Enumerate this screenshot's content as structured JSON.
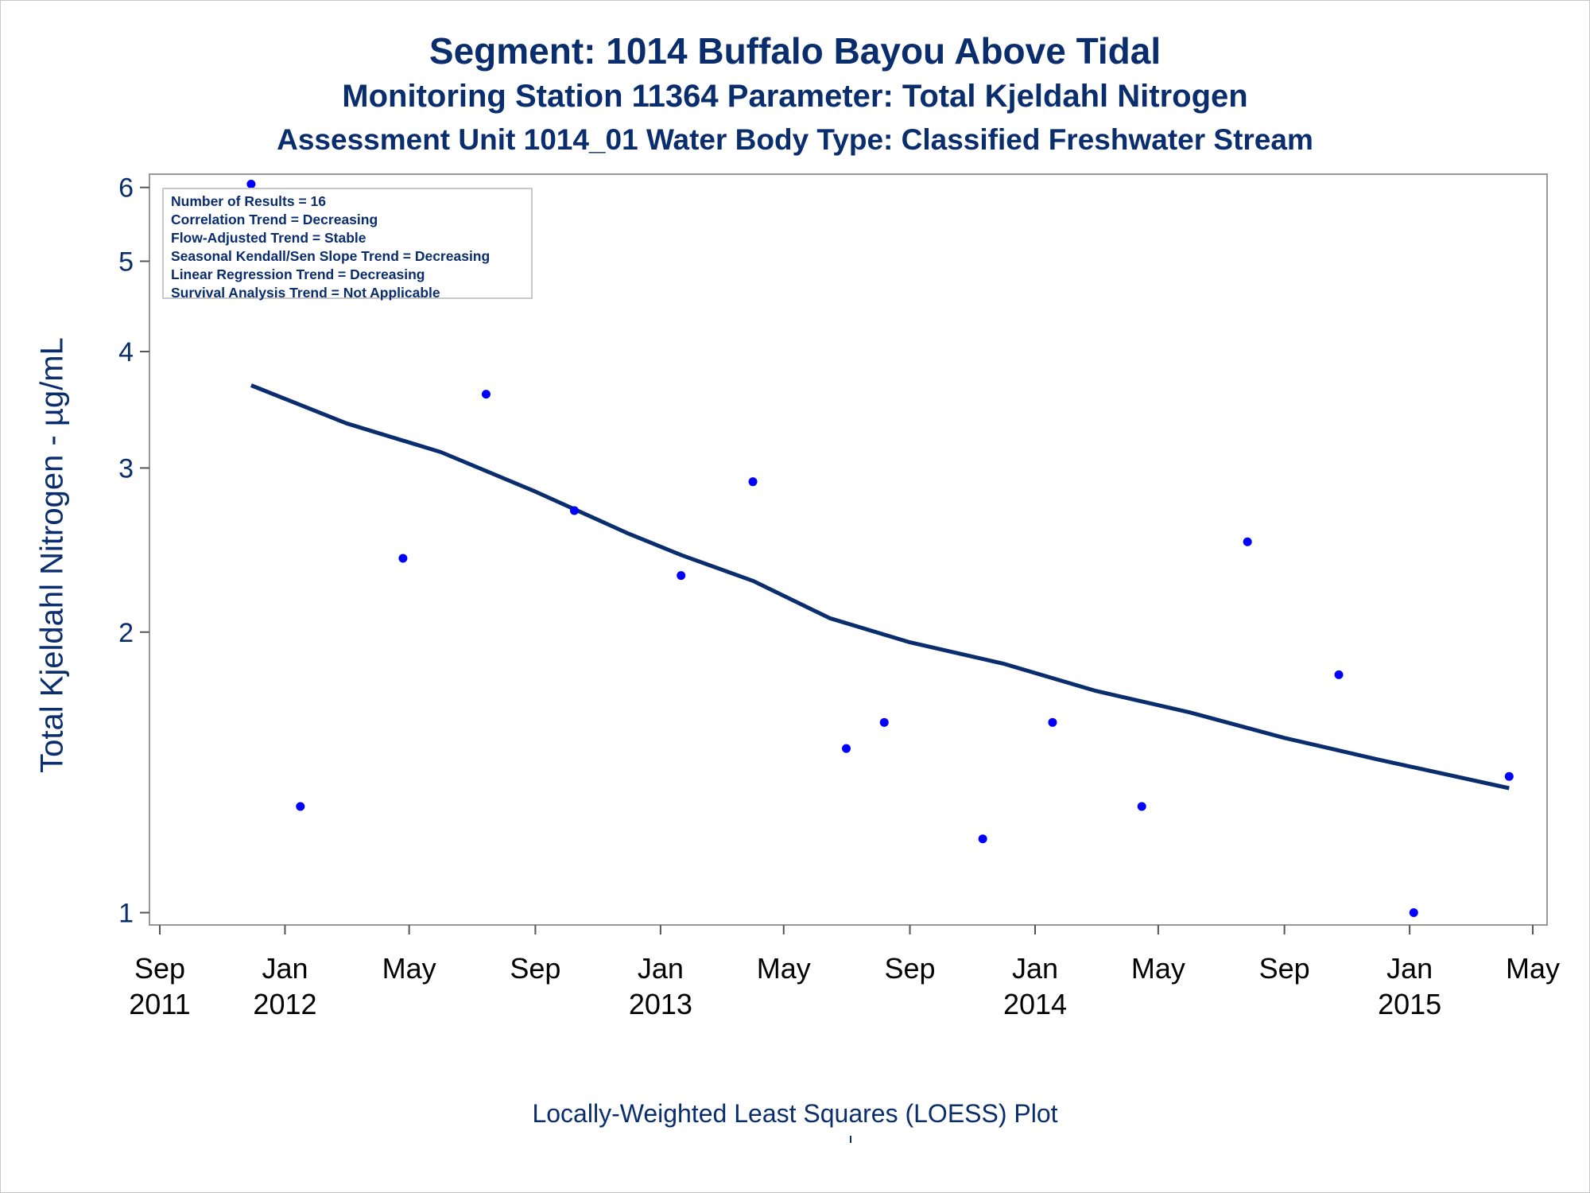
{
  "title": {
    "line1": "Segment: 1014  Buffalo Bayou Above Tidal",
    "line2": "Monitoring Station 11364 Parameter: Total Kjeldahl Nitrogen",
    "line3": "Assessment Unit 1014_01   Water Body Type: Classified Freshwater Stream"
  },
  "stats_box": [
    "Number of Results = 16",
    "Correlation Trend = Decreasing",
    "Flow-Adjusted Trend = Stable",
    "Seasonal Kendall/Sen Slope Trend = Decreasing",
    "Linear Regression Trend = Decreasing",
    "Survival Analysis Trend = Not Applicable"
  ],
  "footnote": "Locally-Weighted Least Squares (LOESS) Plot",
  "colors": {
    "text": "#0a2d6e",
    "points": "#0000ff",
    "loess_line": "#0a2d6e",
    "axis_frame": "#999999"
  },
  "chart_data": {
    "type": "scatter",
    "ylabel": "Total Kjeldahl Nitrogen -  µg/mL",
    "xlabel": "",
    "y_scale": "log",
    "ylim": [
      0.97,
      6.2
    ],
    "y_ticks": [
      1,
      2,
      3,
      4,
      5,
      6
    ],
    "x_ticks": [
      {
        "date": "2011-09-01",
        "label": [
          "Sep",
          "2011"
        ]
      },
      {
        "date": "2012-01-01",
        "label": [
          "Jan",
          "2012"
        ]
      },
      {
        "date": "2012-05-01",
        "label": [
          "May",
          ""
        ]
      },
      {
        "date": "2012-09-01",
        "label": [
          "Sep",
          ""
        ]
      },
      {
        "date": "2013-01-01",
        "label": [
          "Jan",
          "2013"
        ]
      },
      {
        "date": "2013-05-01",
        "label": [
          "May",
          ""
        ]
      },
      {
        "date": "2013-09-01",
        "label": [
          "Sep",
          ""
        ]
      },
      {
        "date": "2014-01-01",
        "label": [
          "Jan",
          "2014"
        ]
      },
      {
        "date": "2014-05-01",
        "label": [
          "May",
          ""
        ]
      },
      {
        "date": "2014-09-01",
        "label": [
          "Sep",
          ""
        ]
      },
      {
        "date": "2015-01-01",
        "label": [
          "Jan",
          "2015"
        ]
      },
      {
        "date": "2015-05-01",
        "label": [
          "May",
          ""
        ]
      }
    ],
    "grid": false,
    "series": [
      {
        "kind": "points",
        "points": [
          {
            "x": "2011-11-29",
            "y": 6.05
          },
          {
            "x": "2012-01-16",
            "y": 1.3
          },
          {
            "x": "2012-04-25",
            "y": 2.4
          },
          {
            "x": "2012-07-15",
            "y": 3.6
          },
          {
            "x": "2012-10-09",
            "y": 2.7
          },
          {
            "x": "2013-01-21",
            "y": 2.3
          },
          {
            "x": "2013-04-01",
            "y": 2.9
          },
          {
            "x": "2013-07-01",
            "y": 1.5
          },
          {
            "x": "2013-08-07",
            "y": 1.6
          },
          {
            "x": "2013-11-11",
            "y": 1.2
          },
          {
            "x": "2014-01-18",
            "y": 1.6
          },
          {
            "x": "2014-04-15",
            "y": 1.3
          },
          {
            "x": "2014-07-27",
            "y": 2.5
          },
          {
            "x": "2014-10-24",
            "y": 1.8
          },
          {
            "x": "2015-01-05",
            "y": 1.0
          },
          {
            "x": "2015-04-08",
            "y": 1.4
          }
        ]
      },
      {
        "kind": "loess",
        "points": [
          {
            "x": "2011-11-29",
            "y": 3.68
          },
          {
            "x": "2012-03-01",
            "y": 3.35
          },
          {
            "x": "2012-06-01",
            "y": 3.12
          },
          {
            "x": "2012-09-01",
            "y": 2.83
          },
          {
            "x": "2012-12-01",
            "y": 2.55
          },
          {
            "x": "2013-01-21",
            "y": 2.42
          },
          {
            "x": "2013-04-01",
            "y": 2.27
          },
          {
            "x": "2013-06-15",
            "y": 2.07
          },
          {
            "x": "2013-09-01",
            "y": 1.95
          },
          {
            "x": "2013-12-01",
            "y": 1.85
          },
          {
            "x": "2014-03-01",
            "y": 1.73
          },
          {
            "x": "2014-06-01",
            "y": 1.64
          },
          {
            "x": "2014-09-01",
            "y": 1.54
          },
          {
            "x": "2014-12-01",
            "y": 1.46
          },
          {
            "x": "2015-04-08",
            "y": 1.36
          }
        ]
      }
    ]
  }
}
